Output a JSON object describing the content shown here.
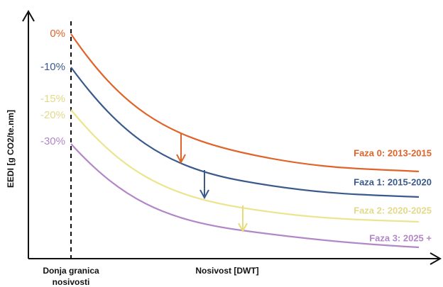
{
  "axes": {
    "y_label": "EEDI [g CO2/te.nm]",
    "x_label": "Nosivost [DWT]",
    "x_origin_label": [
      "Donja granica",
      "nosivosti"
    ]
  },
  "reduction_labels": [
    "0%",
    "-10%",
    "-15%",
    "-20%",
    "-30%"
  ],
  "phases": [
    "Faza 0: 2013-2015",
    "Faza 1: 2015-2020",
    "Faza 2: 2020-2025",
    "Faza 3: 2025 +"
  ]
}
